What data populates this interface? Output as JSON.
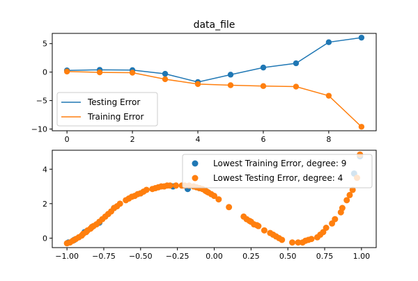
{
  "chart_data": [
    {
      "type": "line",
      "title": "data_file",
      "xlabel": "",
      "ylabel": "",
      "xlim": [
        -0.45,
        9.45
      ],
      "ylim": [
        -10.3,
        6.8
      ],
      "xticks": [
        0,
        2,
        4,
        6,
        8
      ],
      "xtick_labels": [
        "0",
        "2",
        "4",
        "6",
        "8"
      ],
      "yticks": [
        5,
        0,
        -5,
        -10
      ],
      "ytick_labels": [
        "5",
        "0",
        "−5",
        "−10"
      ],
      "legend_position": "lower-left",
      "x": [
        0,
        1,
        2,
        3,
        4,
        5,
        6,
        7,
        8,
        9
      ],
      "series": [
        {
          "name": "Testing Error",
          "color": "#1f77b4",
          "values": [
            0.3,
            0.4,
            0.35,
            -0.3,
            -1.75,
            -0.45,
            0.8,
            1.55,
            5.25,
            6.05
          ]
        },
        {
          "name": "Training Error",
          "color": "#ff7f0e",
          "values": [
            0.1,
            -0.05,
            -0.1,
            -1.25,
            -2.1,
            -2.3,
            -2.45,
            -2.55,
            -4.15,
            -9.6
          ]
        }
      ]
    },
    {
      "type": "scatter",
      "title": "",
      "xlabel": "",
      "ylabel": "",
      "xlim": [
        -1.1,
        1.1
      ],
      "ylim": [
        -0.55,
        5.1
      ],
      "xticks": [
        -1.0,
        -0.75,
        -0.5,
        -0.25,
        0.0,
        0.25,
        0.5,
        0.75,
        1.0
      ],
      "xtick_labels": [
        "−1.00",
        "−0.75",
        "−0.50",
        "−0.25",
        "0.00",
        "0.25",
        "0.50",
        "0.75",
        "1.00"
      ],
      "yticks": [
        0,
        2,
        4
      ],
      "ytick_labels": [
        "0",
        "2",
        "4"
      ],
      "legend_position": "top-right",
      "series": [
        {
          "name": "Lowest Training Error, degree: 9",
          "color": "#1f77b4",
          "x": [
            -0.99,
            -0.95,
            -0.88,
            -0.83,
            -0.78,
            -0.68,
            -0.5,
            -0.28,
            -0.18,
            -0.1,
            0.95,
            0.99
          ],
          "y": [
            -0.25,
            -0.1,
            0.35,
            0.65,
            0.9,
            1.75,
            2.6,
            3.0,
            2.85,
            2.9,
            3.75,
            4.75
          ]
        },
        {
          "name": "Lowest Testing Error, degree: 4",
          "color": "#ff7f0e",
          "x": [
            -1.0,
            -0.98,
            -0.96,
            -0.94,
            -0.92,
            -0.9,
            -0.89,
            -0.87,
            -0.86,
            -0.84,
            -0.83,
            -0.82,
            -0.8,
            -0.78,
            -0.76,
            -0.74,
            -0.72,
            -0.7,
            -0.68,
            -0.66,
            -0.64,
            -0.6,
            -0.58,
            -0.56,
            -0.54,
            -0.52,
            -0.5,
            -0.48,
            -0.46,
            -0.42,
            -0.4,
            -0.38,
            -0.36,
            -0.34,
            -0.32,
            -0.3,
            -0.26,
            -0.22,
            -0.2,
            -0.17,
            -0.14,
            -0.12,
            -0.1,
            -0.08,
            -0.06,
            -0.05,
            -0.04,
            -0.02,
            0.0,
            0.03,
            0.1,
            0.2,
            0.22,
            0.24,
            0.25,
            0.27,
            0.29,
            0.3,
            0.34,
            0.38,
            0.4,
            0.42,
            0.44,
            0.46,
            0.53,
            0.57,
            0.6,
            0.62,
            0.64,
            0.66,
            0.7,
            0.72,
            0.74,
            0.76,
            0.8,
            0.82,
            0.86,
            0.87,
            0.9,
            0.92,
            0.94,
            0.97,
            0.99
          ],
          "y": [
            -0.3,
            -0.25,
            -0.15,
            -0.05,
            0.05,
            0.15,
            0.25,
            0.35,
            0.45,
            0.55,
            0.65,
            0.7,
            0.8,
            0.95,
            1.1,
            1.25,
            1.4,
            1.55,
            1.75,
            1.85,
            2.0,
            2.2,
            2.3,
            2.4,
            2.45,
            2.55,
            2.6,
            2.7,
            2.8,
            2.85,
            2.9,
            2.95,
            3.0,
            3.0,
            3.05,
            3.05,
            3.05,
            3.05,
            3.05,
            3.05,
            3.0,
            2.95,
            2.9,
            2.85,
            2.75,
            2.7,
            2.65,
            2.55,
            2.45,
            2.25,
            1.8,
            1.25,
            1.1,
            1.0,
            0.95,
            0.8,
            0.75,
            0.7,
            0.45,
            0.3,
            0.2,
            0.1,
            0.0,
            -0.1,
            -0.25,
            -0.25,
            -0.25,
            -0.15,
            -0.1,
            -0.05,
            0.05,
            0.2,
            0.35,
            0.6,
            0.85,
            1.1,
            1.5,
            1.75,
            2.2,
            2.5,
            2.8,
            3.5,
            4.85
          ]
        }
      ]
    }
  ]
}
